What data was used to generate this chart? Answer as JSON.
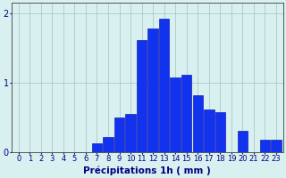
{
  "categories": [
    0,
    1,
    2,
    3,
    4,
    5,
    6,
    7,
    8,
    9,
    10,
    11,
    12,
    13,
    14,
    15,
    16,
    17,
    18,
    19,
    20,
    21,
    22,
    23
  ],
  "values": [
    0,
    0,
    0,
    0,
    0,
    0,
    0,
    0.12,
    0.22,
    0.5,
    0.55,
    1.62,
    1.78,
    1.92,
    1.08,
    1.12,
    0.82,
    0.62,
    0.58,
    0.0,
    0.3,
    0.0,
    0.18,
    0.18
  ],
  "bar_color": "#1133ee",
  "bar_edge_color": "#0000aa",
  "background_color": "#d8f0f0",
  "grid_color": "#aec8c8",
  "axis_color": "#555555",
  "xlabel": "Précipitations 1h ( mm )",
  "ylim": [
    0,
    2.15
  ],
  "yticks": [
    0,
    1,
    2
  ],
  "xlabel_color": "#000080",
  "tick_color": "#000080",
  "xlabel_fontsize": 7.5,
  "tick_fontsize": 6.0
}
